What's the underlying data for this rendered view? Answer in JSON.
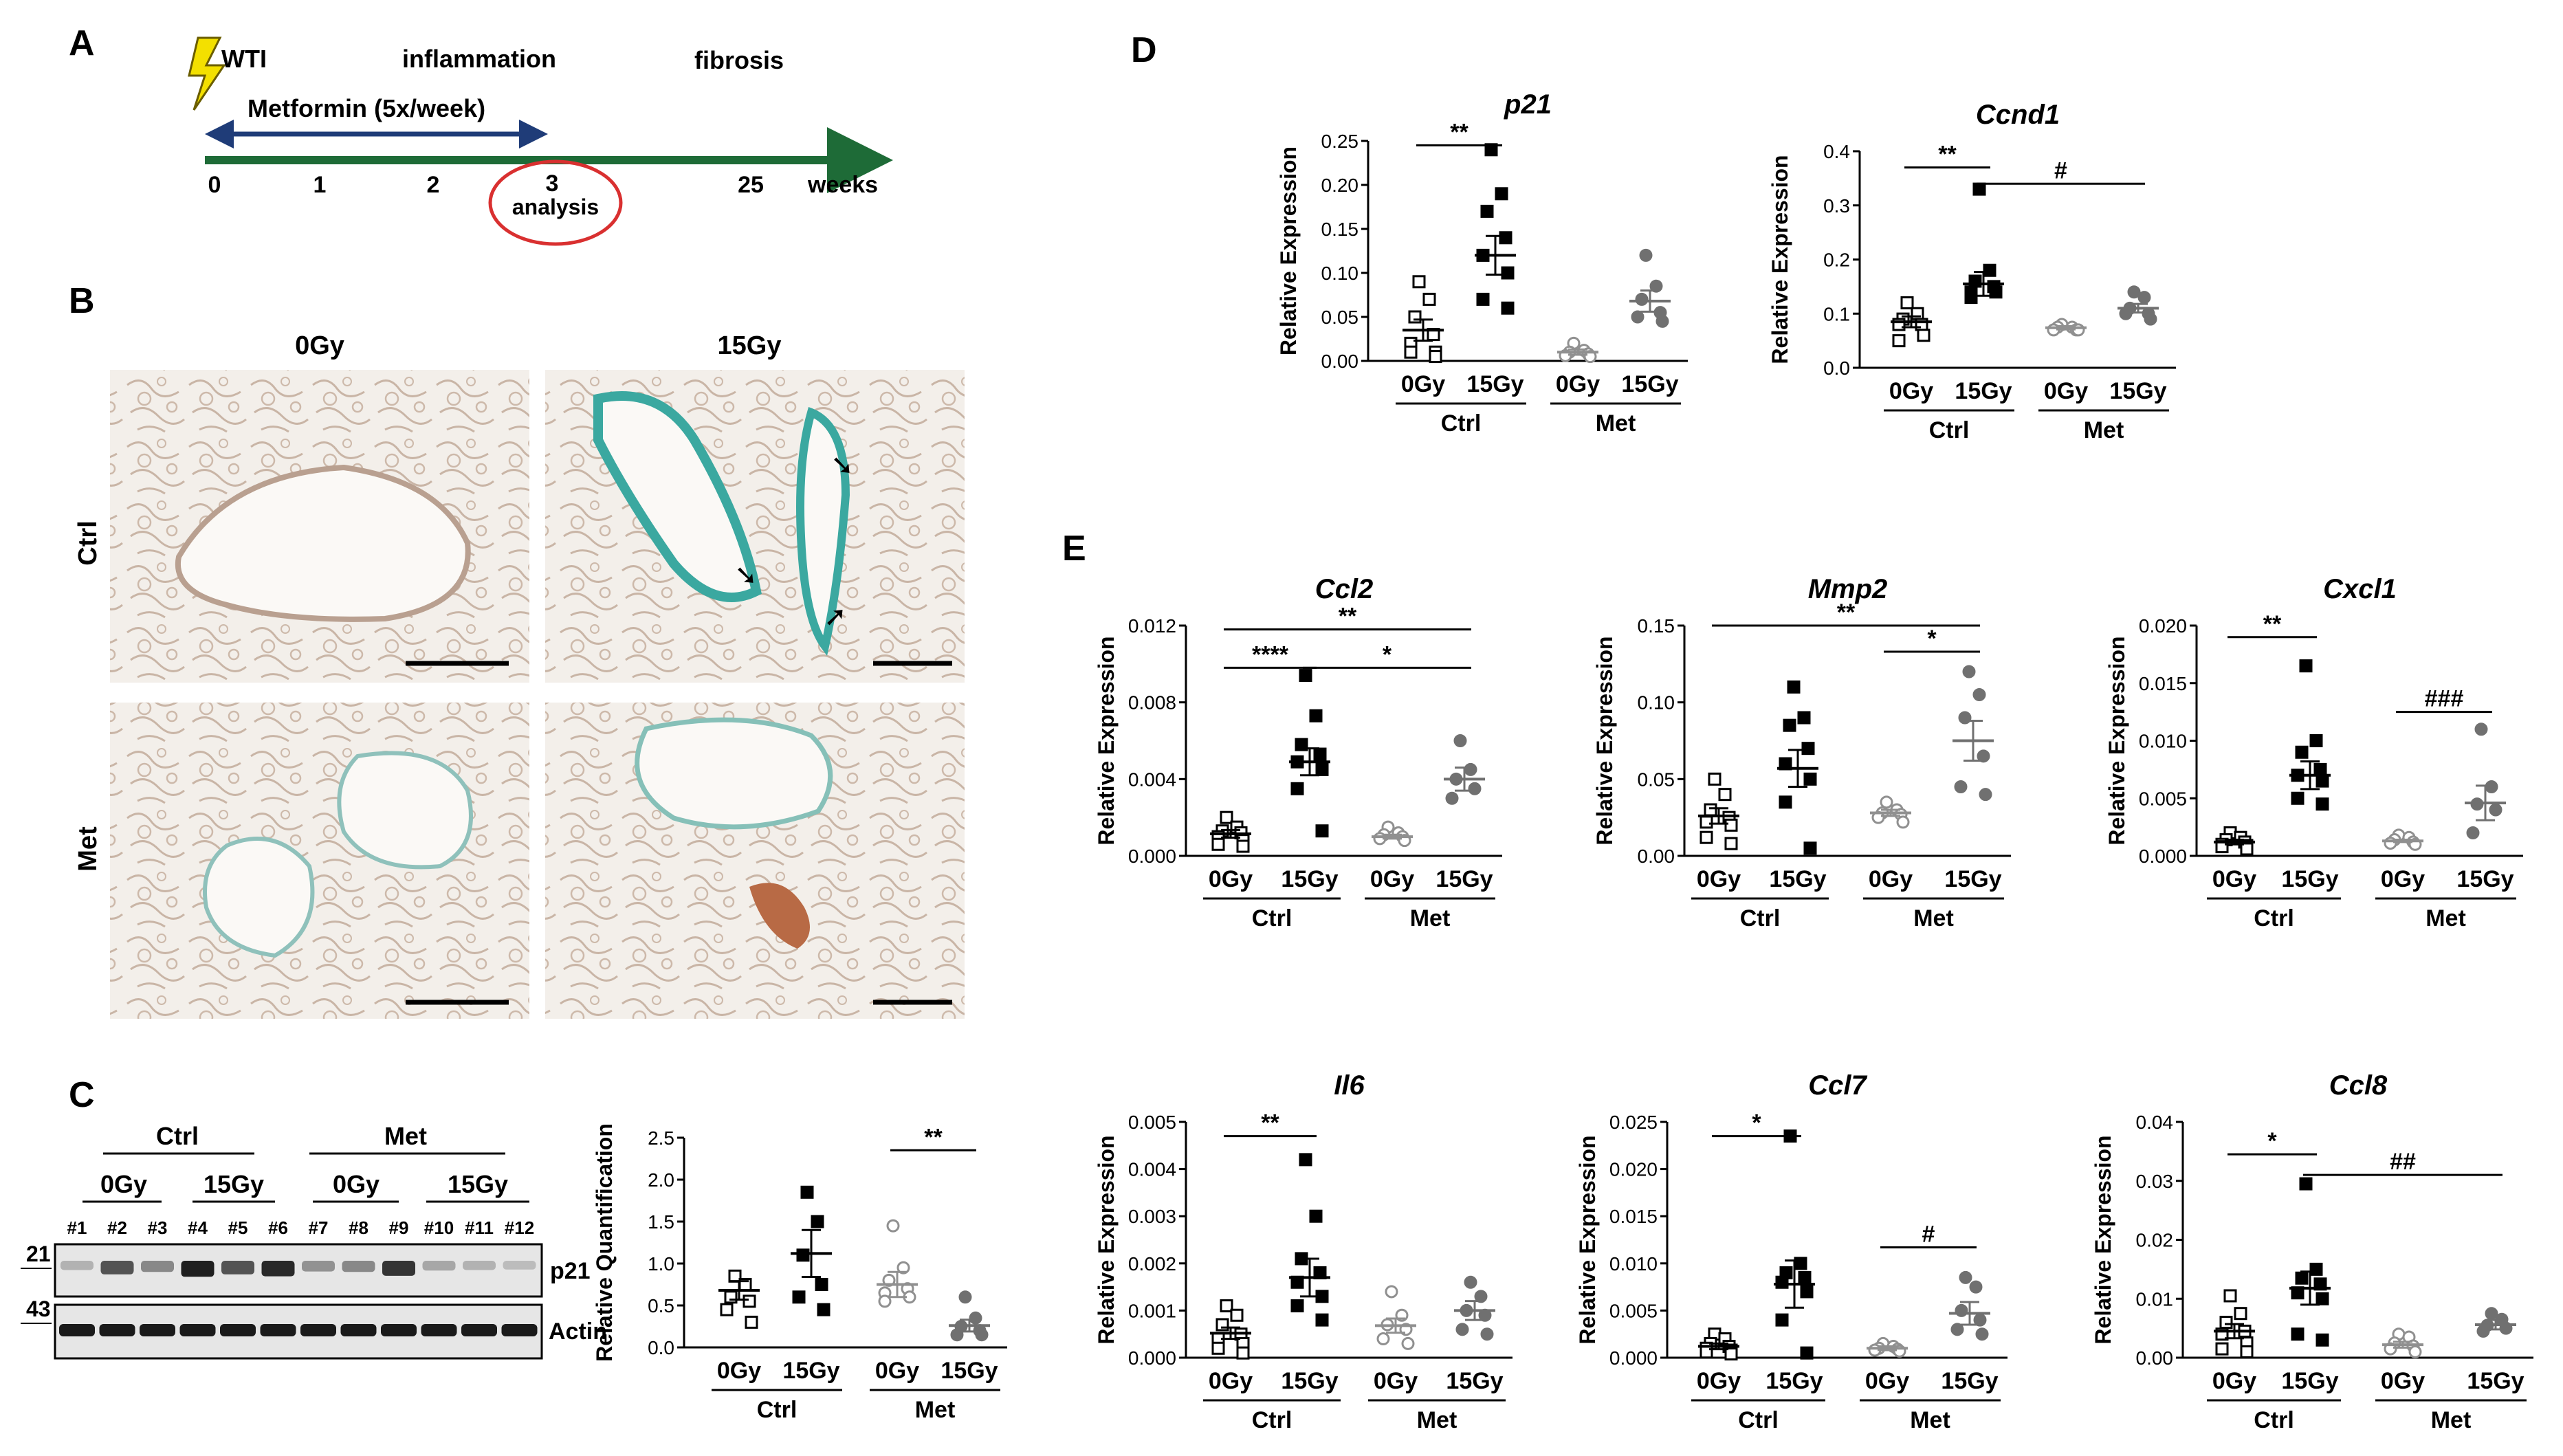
{
  "panel_labels": {
    "a": "A",
    "b": "B",
    "c": "C",
    "d": "D",
    "e": "E"
  },
  "timeline": {
    "wti": "WTI",
    "inflammation": "inflammation",
    "fibrosis": "fibrosis",
    "metformin": "Metformin (5x/week)",
    "ticks": [
      "0",
      "1",
      "2",
      "3",
      "25"
    ],
    "weeks": "weeks",
    "analysis": "analysis",
    "colors": {
      "line": "#1e6b37",
      "arrow": "#1f3c78",
      "circle": "#d93030",
      "bolt": "#f3e000"
    }
  },
  "histology": {
    "col_0": "0Gy",
    "col_15": "15Gy",
    "row_ctrl": "Ctrl",
    "row_met": "Met"
  },
  "western": {
    "groups": [
      "Ctrl",
      "Met"
    ],
    "doses": [
      "0Gy",
      "15Gy",
      "0Gy",
      "15Gy"
    ],
    "lanes": [
      "#1",
      "#2",
      "#3",
      "#4",
      "#5",
      "#6",
      "#7",
      "#8",
      "#9",
      "#10",
      "#11",
      "#12"
    ],
    "mw": [
      "21",
      "43"
    ],
    "bands": [
      "p21",
      "Actin"
    ],
    "p21_intensity": [
      0.25,
      0.7,
      0.45,
      0.95,
      0.7,
      0.9,
      0.4,
      0.45,
      0.85,
      0.3,
      0.25,
      0.2
    ]
  },
  "charts": [
    {
      "id": "c",
      "title": "",
      "ylabel": "Relative Quantification",
      "ymax": 2.5,
      "ticks": [
        "0.0",
        "0.5",
        "1.0",
        "1.5",
        "2.0",
        "2.5"
      ],
      "points": [
        [
          0.85,
          0.75,
          0.6,
          0.55,
          0.45,
          0.3
        ],
        [
          1.85,
          1.5,
          1.1,
          0.75,
          0.6,
          0.45
        ],
        [
          1.45,
          0.95,
          0.8,
          0.7,
          0.65,
          0.6,
          0.55
        ],
        [
          0.6,
          0.35,
          0.25,
          0.2,
          0.15,
          0.15
        ]
      ],
      "means": [
        0.68,
        1.12,
        0.75,
        0.26
      ],
      "sems": [
        0.11,
        0.28,
        0.15,
        0.07
      ],
      "sig": [
        {
          "from": 2,
          "to": 3,
          "label": "**",
          "y": 2.35
        }
      ]
    },
    {
      "id": "d1",
      "title": "p21",
      "ylabel": "Relative Expression",
      "ymax": 0.25,
      "ticks": [
        "0.00",
        "0.05",
        "0.10",
        "0.15",
        "0.20",
        "0.25"
      ],
      "points": [
        [
          0.09,
          0.07,
          0.05,
          0.03,
          0.02,
          0.01,
          0.01,
          0.005
        ],
        [
          0.24,
          0.19,
          0.17,
          0.14,
          0.12,
          0.1,
          0.07,
          0.06
        ],
        [
          0.02,
          0.012,
          0.01,
          0.008,
          0.006,
          0.005
        ],
        [
          0.12,
          0.085,
          0.07,
          0.055,
          0.05,
          0.045
        ]
      ],
      "means": [
        0.035,
        0.12,
        0.01,
        0.068
      ],
      "sems": [
        0.012,
        0.022,
        0.003,
        0.012
      ],
      "sig": [
        {
          "from": 0,
          "to": 1,
          "label": "**",
          "y": 0.245
        }
      ]
    },
    {
      "id": "d2",
      "title": "Ccnd1",
      "ylabel": "Relative Expression",
      "ymax": 0.4,
      "ticks": [
        "0.0",
        "0.1",
        "0.2",
        "0.3",
        "0.4"
      ],
      "points": [
        [
          0.12,
          0.1,
          0.09,
          0.08,
          0.08,
          0.06,
          0.05
        ],
        [
          0.33,
          0.18,
          0.16,
          0.15,
          0.14,
          0.14,
          0.13
        ],
        [
          0.08,
          0.075,
          0.075,
          0.07,
          0.07,
          0.07
        ],
        [
          0.14,
          0.13,
          0.11,
          0.1,
          0.1,
          0.09
        ]
      ],
      "means": [
        0.085,
        0.155,
        0.074,
        0.11
      ],
      "sems": [
        0.01,
        0.022,
        0.003,
        0.008
      ],
      "sig": [
        {
          "from": 0,
          "to": 1,
          "label": "**",
          "y": 0.37
        },
        {
          "from": 1,
          "to": 3,
          "label": "#",
          "y": 0.34
        }
      ]
    },
    {
      "id": "e1",
      "title": "Ccl2",
      "ylabel": "Relative Expression",
      "ymax": 0.012,
      "ticks": [
        "0.000",
        "0.004",
        "0.008",
        "0.012"
      ],
      "points": [
        [
          0.002,
          0.0015,
          0.0013,
          0.0012,
          0.001,
          0.0008,
          0.0006,
          0.0005
        ],
        [
          0.0094,
          0.0073,
          0.0058,
          0.0053,
          0.0049,
          0.0045,
          0.0035,
          0.0013
        ],
        [
          0.0015,
          0.0012,
          0.0011,
          0.001,
          0.0009,
          0.0008
        ],
        [
          0.006,
          0.0045,
          0.004,
          0.0035,
          0.003
        ]
      ],
      "means": [
        0.00115,
        0.0049,
        0.001,
        0.004
      ],
      "sems": [
        0.0002,
        0.0007,
        0.0001,
        0.0006
      ],
      "sig": [
        {
          "from": 0,
          "to": 3,
          "label": "**",
          "y": 0.0118
        },
        {
          "from": 0,
          "to": 1,
          "label": "****",
          "y": 0.0098
        },
        {
          "from": 1,
          "to": 3,
          "label": "*",
          "y": 0.0098
        }
      ]
    },
    {
      "id": "e2",
      "title": "Mmp2",
      "ylabel": "Relative Expression",
      "ymax": 0.15,
      "ticks": [
        "0.00",
        "0.05",
        "0.10",
        "0.15"
      ],
      "points": [
        [
          0.05,
          0.04,
          0.03,
          0.025,
          0.022,
          0.02,
          0.012,
          0.008
        ],
        [
          0.11,
          0.09,
          0.085,
          0.07,
          0.06,
          0.05,
          0.035,
          0.005
        ],
        [
          0.035,
          0.03,
          0.028,
          0.027,
          0.025,
          0.022
        ],
        [
          0.12,
          0.105,
          0.09,
          0.065,
          0.045,
          0.04
        ]
      ],
      "means": [
        0.026,
        0.057,
        0.028,
        0.075
      ],
      "sems": [
        0.005,
        0.012,
        0.002,
        0.013
      ],
      "sig": [
        {
          "from": 0,
          "to": 3,
          "label": "**",
          "y": 0.15
        },
        {
          "from": 2,
          "to": 3,
          "label": "*",
          "y": 0.133
        }
      ]
    },
    {
      "id": "e3",
      "title": "Cxcl1",
      "ylabel": "Relative Expression",
      "ymax": 0.02,
      "ticks": [
        "0.000",
        "0.005",
        "0.010",
        "0.015",
        "0.020"
      ],
      "points": [
        [
          0.002,
          0.0016,
          0.0014,
          0.0012,
          0.001,
          0.0009,
          0.0008,
          0.0006
        ],
        [
          0.0165,
          0.01,
          0.009,
          0.0075,
          0.007,
          0.0065,
          0.005,
          0.0045
        ],
        [
          0.0018,
          0.0016,
          0.0014,
          0.0012,
          0.0011,
          0.001
        ],
        [
          0.011,
          0.006,
          0.0045,
          0.004,
          0.002
        ]
      ],
      "means": [
        0.0012,
        0.007,
        0.0013,
        0.0046
      ],
      "sems": [
        0.0002,
        0.0012,
        0.0001,
        0.0015
      ],
      "sig": [
        {
          "from": 0,
          "to": 1,
          "label": "**",
          "y": 0.019
        },
        {
          "from": 2,
          "to": 3,
          "label": "###",
          "y": 0.0125
        }
      ]
    },
    {
      "id": "e4",
      "title": "Il6",
      "ylabel": "Relative Expression",
      "ymax": 0.005,
      "ticks": [
        "0.000",
        "0.001",
        "0.002",
        "0.003",
        "0.004",
        "0.005"
      ],
      "points": [
        [
          0.0011,
          0.0009,
          0.0007,
          0.0005,
          0.0004,
          0.0003,
          0.0002,
          0.0001
        ],
        [
          0.0042,
          0.003,
          0.0021,
          0.0018,
          0.0016,
          0.0013,
          0.0011,
          0.0008
        ],
        [
          0.0014,
          0.0009,
          0.0007,
          0.0006,
          0.0004,
          0.0003
        ],
        [
          0.0016,
          0.0013,
          0.001,
          0.0009,
          0.0006,
          0.0005
        ]
      ],
      "means": [
        0.00052,
        0.0017,
        0.00068,
        0.001
      ],
      "sems": [
        0.00012,
        0.0004,
        0.00015,
        0.0002
      ],
      "sig": [
        {
          "from": 0,
          "to": 1,
          "label": "**",
          "y": 0.0047
        }
      ]
    },
    {
      "id": "e5",
      "title": "Ccl7",
      "ylabel": "Relative Expression",
      "ymax": 0.025,
      "ticks": [
        "0.000",
        "0.005",
        "0.010",
        "0.015",
        "0.020",
        "0.025"
      ],
      "points": [
        [
          0.0025,
          0.002,
          0.0015,
          0.0012,
          0.001,
          0.0008,
          0.0006,
          0.0004
        ],
        [
          0.0235,
          0.01,
          0.009,
          0.0085,
          0.008,
          0.007,
          0.004,
          0.0005
        ],
        [
          0.0015,
          0.0012,
          0.001,
          0.0009,
          0.0008,
          0.0007
        ],
        [
          0.0085,
          0.0075,
          0.005,
          0.004,
          0.003,
          0.0025
        ]
      ],
      "means": [
        0.0012,
        0.0078,
        0.001,
        0.0047
      ],
      "sems": [
        0.0003,
        0.0025,
        0.0002,
        0.0012
      ],
      "sig": [
        {
          "from": 0,
          "to": 1,
          "label": "*",
          "y": 0.0235
        },
        {
          "from": 2,
          "to": 3,
          "label": "#",
          "y": 0.0117
        }
      ]
    },
    {
      "id": "e6",
      "title": "Ccl8",
      "ylabel": "Relative Expression",
      "ymax": 0.04,
      "ticks": [
        "0.00",
        "0.01",
        "0.02",
        "0.03",
        "0.04"
      ],
      "points": [
        [
          0.0105,
          0.0075,
          0.006,
          0.0045,
          0.004,
          0.0025,
          0.0015,
          0.001
        ],
        [
          0.0295,
          0.015,
          0.0135,
          0.0125,
          0.011,
          0.01,
          0.004,
          0.003
        ],
        [
          0.004,
          0.0035,
          0.0025,
          0.002,
          0.0015,
          0.001
        ],
        [
          0.0075,
          0.0065,
          0.0055,
          0.005,
          0.0045
        ]
      ],
      "means": [
        0.0045,
        0.0118,
        0.0022,
        0.0056
      ],
      "sems": [
        0.0012,
        0.0028,
        0.0005,
        0.0008
      ],
      "sig": [
        {
          "from": 0,
          "to": 1,
          "label": "*",
          "y": 0.0345
        },
        {
          "from": 1,
          "to": 3,
          "label": "##",
          "y": 0.031
        }
      ]
    }
  ],
  "chart_groups": {
    "doses": [
      "0Gy",
      "15Gy",
      "0Gy",
      "15Gy"
    ],
    "groups": [
      "Ctrl",
      "Met"
    ]
  },
  "styles": {
    "colors": {
      "ctrl_0": "#000000",
      "ctrl_15": "#000000",
      "met_0": "#909090",
      "met_15": "#707070"
    },
    "shapes": [
      "open-square",
      "filled-square",
      "open-circle",
      "filled-circle"
    ]
  }
}
